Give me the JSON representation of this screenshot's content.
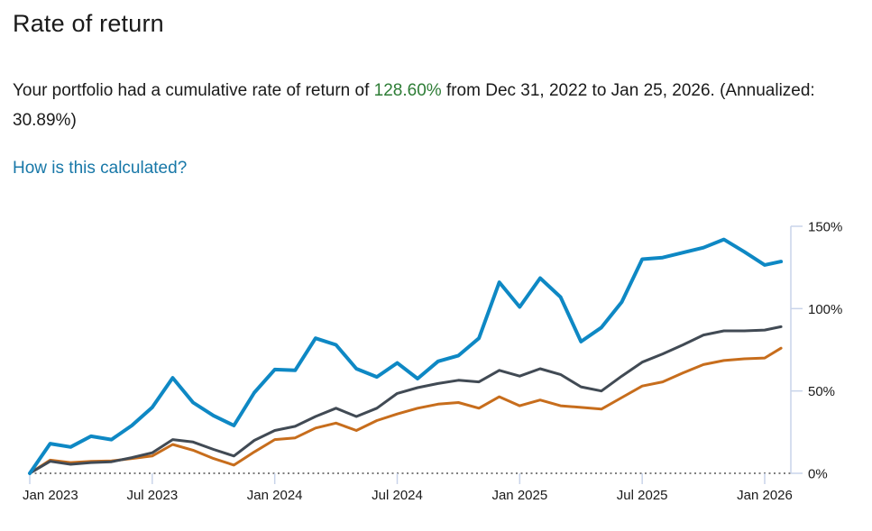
{
  "page": {
    "title": "Rate of return",
    "summary": {
      "prefix": "Your portfolio had a cumulative rate of return of ",
      "highlight": "128.60%",
      "suffix": " from Dec 31, 2022 to Jan 25, 2026. (Annualized: 30.89%)"
    },
    "link_label": "How is this calculated?"
  },
  "colors": {
    "portfolio_blue": "#0e88c4",
    "benchmark_gray": "#414a54",
    "benchmark_orange": "#c76d1c",
    "axis": "#c9d4ea",
    "zero_dotted_line": "#7f7f7f",
    "highlight_green": "#2e7d36",
    "link_blue": "#1878a8",
    "tick_text": "#1a1a1a"
  },
  "chart_data": {
    "type": "line",
    "title": "",
    "xlabel": "",
    "ylabel": "",
    "grid": false,
    "legend": "none",
    "y_axis": {
      "side": "right",
      "range": [
        0,
        150
      ],
      "tick_values": [
        0,
        50,
        100,
        150
      ],
      "tick_labels": [
        "0%",
        "50%",
        "100%",
        "150%"
      ]
    },
    "x_axis": {
      "tick_labels": [
        "Jan 2023",
        "Jul 2023",
        "Jan 2024",
        "Jul 2024",
        "Jan 2025",
        "Jul 2025",
        "Jan 2026"
      ],
      "tick_month_offsets": [
        0,
        6,
        12,
        18,
        24,
        30,
        36
      ],
      "zero_baseline": "dotted"
    },
    "x_month_offsets": [
      0,
      1,
      2,
      3,
      4,
      5,
      6,
      7,
      8,
      9,
      10,
      11,
      12,
      13,
      14,
      15,
      16,
      17,
      18,
      19,
      20,
      21,
      22,
      23,
      24,
      25,
      26,
      27,
      28,
      29,
      30,
      31,
      32,
      33,
      34,
      35,
      36,
      36.8
    ],
    "series": [
      {
        "name": "benchmark-orange",
        "color": "#c76d1c",
        "stroke_width": 3,
        "values": [
          0,
          8,
          6.5,
          7.3,
          7.5,
          9,
          10.5,
          17.5,
          14,
          9,
          5,
          13,
          20.5,
          21.5,
          27.5,
          30.5,
          26,
          32,
          36,
          39.5,
          42,
          43,
          39.5,
          46.5,
          41,
          44.5,
          41,
          40,
          39,
          46,
          53,
          55.5,
          61,
          66,
          68.5,
          69.5,
          70,
          76
        ]
      },
      {
        "name": "benchmark-gray",
        "color": "#414a54",
        "stroke_width": 3,
        "values": [
          0,
          7.3,
          5.5,
          6.5,
          7,
          9.5,
          12.5,
          20.5,
          19,
          14.5,
          10.5,
          20,
          26,
          28.5,
          34.5,
          39.5,
          34.5,
          39.5,
          48.5,
          52,
          54.5,
          56.5,
          55.5,
          62.5,
          59,
          63.5,
          60,
          52.5,
          50,
          59,
          67.5,
          72.5,
          78,
          84,
          86.5,
          86.5,
          87,
          89
        ]
      },
      {
        "name": "portfolio",
        "color": "#0e88c4",
        "stroke_width": 4,
        "values": [
          0,
          18,
          16,
          22.5,
          20.5,
          29,
          40,
          58,
          43,
          35,
          29,
          49,
          63,
          62.5,
          82,
          78,
          63.5,
          58.5,
          67,
          57.5,
          68,
          71.5,
          82,
          116,
          101,
          118.5,
          107,
          80,
          88.5,
          104,
          130,
          131,
          134,
          137,
          142,
          134.5,
          126.5,
          128.6
        ]
      }
    ]
  }
}
